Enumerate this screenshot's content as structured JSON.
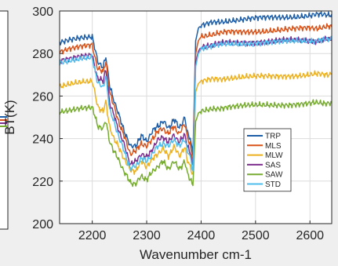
{
  "chart_data": {
    "type": "line",
    "xlabel": "Wavenumber cm-1",
    "ylabel": "BT(K)",
    "xlim": [
      2140,
      2640
    ],
    "ylim": [
      200,
      300
    ],
    "xticks": [
      2200,
      2300,
      2400,
      2500,
      2600
    ],
    "yticks": [
      200,
      220,
      240,
      260,
      280,
      300
    ],
    "grid": true,
    "legend_position": "center-right",
    "series": [
      {
        "name": "TRP",
        "color": "#1f5fa8",
        "x": [
          2140,
          2160,
          2180,
          2200,
          2210,
          2220,
          2225,
          2232,
          2240,
          2250,
          2260,
          2270,
          2280,
          2290,
          2300,
          2310,
          2320,
          2330,
          2340,
          2350,
          2360,
          2370,
          2375,
          2380,
          2385,
          2390,
          2395,
          2400,
          2420,
          2450,
          2500,
          2550,
          2600,
          2640
        ],
        "y": [
          285,
          286.5,
          287.5,
          288,
          276,
          274,
          279,
          265,
          258,
          250,
          243,
          236,
          237,
          241,
          239,
          243,
          246,
          248,
          245,
          249,
          245,
          250,
          243,
          240,
          232,
          286,
          292,
          293,
          294.5,
          295.5,
          296.5,
          297,
          298,
          298.5
        ]
      },
      {
        "name": "MLS",
        "color": "#d95319",
        "x": [
          2140,
          2160,
          2180,
          2200,
          2210,
          2220,
          2225,
          2232,
          2240,
          2250,
          2260,
          2270,
          2280,
          2290,
          2300,
          2310,
          2320,
          2330,
          2340,
          2350,
          2360,
          2370,
          2375,
          2380,
          2385,
          2390,
          2395,
          2400,
          2420,
          2450,
          2500,
          2550,
          2600,
          2640
        ],
        "y": [
          281,
          282.5,
          283.5,
          284,
          273,
          271,
          276,
          262,
          255,
          247,
          240,
          233,
          234,
          238,
          236,
          240,
          243,
          245,
          242,
          246,
          242,
          247,
          240,
          237,
          229,
          280,
          286,
          288,
          289,
          290,
          290.5,
          291,
          292,
          292.5
        ]
      },
      {
        "name": "MLW",
        "color": "#edb120",
        "x": [
          2140,
          2160,
          2180,
          2200,
          2210,
          2220,
          2225,
          2232,
          2240,
          2250,
          2260,
          2270,
          2280,
          2290,
          2300,
          2310,
          2320,
          2330,
          2340,
          2350,
          2360,
          2370,
          2375,
          2380,
          2385,
          2390,
          2395,
          2400,
          2420,
          2450,
          2500,
          2550,
          2600,
          2640
        ],
        "y": [
          264,
          265.5,
          266.5,
          267,
          255,
          253,
          258,
          245,
          240,
          235,
          230,
          225,
          225,
          229,
          227,
          230,
          233,
          235,
          232,
          236,
          232,
          236,
          230,
          227,
          222,
          262,
          266,
          267,
          268,
          268.5,
          269,
          269.5,
          270,
          270.5
        ]
      },
      {
        "name": "SAS",
        "color": "#7e2f8e",
        "x": [
          2140,
          2160,
          2180,
          2200,
          2210,
          2220,
          2225,
          2232,
          2240,
          2250,
          2260,
          2270,
          2280,
          2290,
          2300,
          2310,
          2320,
          2330,
          2340,
          2350,
          2360,
          2370,
          2375,
          2380,
          2385,
          2390,
          2395,
          2400,
          2420,
          2450,
          2500,
          2550,
          2600,
          2640
        ],
        "y": [
          277,
          278,
          279,
          279.5,
          268,
          267,
          272,
          257,
          251,
          243,
          236,
          228,
          229,
          233,
          231,
          235,
          239,
          241,
          238,
          242,
          238,
          242,
          236,
          233,
          227,
          276,
          281,
          283,
          284,
          285,
          285.5,
          286,
          286,
          286.5
        ]
      },
      {
        "name": "SAW",
        "color": "#77ac30",
        "x": [
          2140,
          2160,
          2180,
          2200,
          2210,
          2220,
          2225,
          2232,
          2240,
          2250,
          2260,
          2270,
          2280,
          2290,
          2300,
          2310,
          2320,
          2330,
          2340,
          2350,
          2360,
          2370,
          2375,
          2380,
          2385,
          2390,
          2395,
          2400,
          2420,
          2450,
          2500,
          2550,
          2600,
          2640
        ],
        "y": [
          252,
          253,
          254,
          254.5,
          246,
          245,
          249,
          238,
          234,
          229,
          224,
          219,
          219,
          222,
          221,
          224,
          227,
          229,
          226,
          229,
          226,
          229,
          224,
          221,
          218,
          248,
          252,
          253,
          254,
          255,
          255.5,
          256,
          256.5,
          257
        ]
      },
      {
        "name": "STD",
        "color": "#4dbeee",
        "x": [
          2140,
          2160,
          2180,
          2200,
          2210,
          2220,
          2225,
          2232,
          2240,
          2250,
          2260,
          2270,
          2280,
          2290,
          2300,
          2310,
          2320,
          2330,
          2340,
          2350,
          2360,
          2370,
          2375,
          2380,
          2385,
          2390,
          2395,
          2400,
          2420,
          2450,
          2500,
          2550,
          2600,
          2640
        ],
        "y": [
          276,
          277,
          278,
          278.5,
          266,
          264,
          269,
          254,
          248,
          240,
          233,
          226,
          227,
          231,
          229,
          233,
          236,
          238,
          236,
          240,
          236,
          240,
          234,
          231,
          225,
          274,
          280,
          282,
          283.5,
          284.5,
          285,
          285.5,
          286,
          286.5
        ]
      }
    ]
  }
}
